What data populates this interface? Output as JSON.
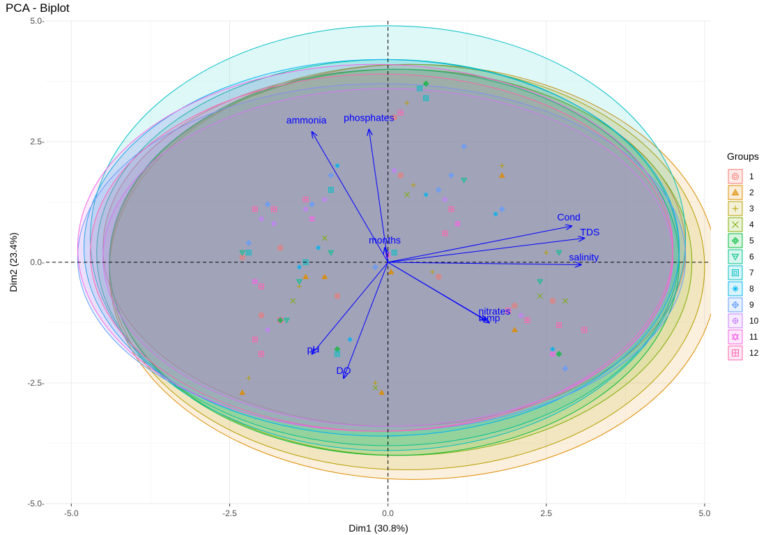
{
  "chart_data": {
    "type": "scatter",
    "title": "PCA - Biplot",
    "xlabel": "Dim1 (30.8%)",
    "ylabel": "Dim2 (23.4%)",
    "xlim": [
      -5.4,
      5.1
    ],
    "ylim": [
      -5.0,
      5.0
    ],
    "x_ticks": [
      -5.0,
      -2.5,
      0.0,
      2.5,
      5.0
    ],
    "x_tick_labels": [
      "-5.0",
      "-2.5",
      "0.0",
      "2.5",
      "5.0"
    ],
    "y_ticks": [
      -5.0,
      -2.5,
      0.0,
      2.5,
      5.0
    ],
    "y_tick_labels": [
      "-5.0-",
      "-2.5-",
      "0.0-",
      "2.5-",
      "5.0-"
    ],
    "grid": true,
    "reference_lines": {
      "x": 0,
      "y": 0,
      "style": "dashed"
    },
    "legend": {
      "title": "Groups",
      "placement": "right",
      "items": [
        {
          "label": "1",
          "color": "#F8766D"
        },
        {
          "label": "2",
          "color": "#DE8C00"
        },
        {
          "label": "3",
          "color": "#B79F00"
        },
        {
          "label": "4",
          "color": "#7CAE00"
        },
        {
          "label": "5",
          "color": "#00BA38"
        },
        {
          "label": "6",
          "color": "#00C08B"
        },
        {
          "label": "7",
          "color": "#00BFC4"
        },
        {
          "label": "8",
          "color": "#00B4F0"
        },
        {
          "label": "9",
          "color": "#619CFF"
        },
        {
          "label": "10",
          "color": "#C77CFF"
        },
        {
          "label": "11",
          "color": "#F564E3"
        },
        {
          "label": "12",
          "color": "#FF64B0"
        }
      ]
    },
    "ellipses": [
      {
        "group": "1",
        "cx": 0.1,
        "cy": 0.3,
        "rx": 4.6,
        "ry": 3.7,
        "color": "#F8766D"
      },
      {
        "group": "2",
        "cx": 0.4,
        "cy": -0.2,
        "rx": 4.8,
        "ry": 4.3,
        "color": "#DE8C00"
      },
      {
        "group": "3",
        "cx": 0.3,
        "cy": -0.1,
        "rx": 4.7,
        "ry": 4.2,
        "color": "#B79F00"
      },
      {
        "group": "4",
        "cx": 0.2,
        "cy": 0.0,
        "rx": 4.6,
        "ry": 4.0,
        "color": "#7CAE00"
      },
      {
        "group": "5",
        "cx": 0.1,
        "cy": 0.0,
        "rx": 4.5,
        "ry": 4.0,
        "color": "#00BA38"
      },
      {
        "group": "6",
        "cx": 0.0,
        "cy": 0.2,
        "rx": 4.6,
        "ry": 4.0,
        "color": "#00C08B"
      },
      {
        "group": "7",
        "cx": 0.0,
        "cy": 0.5,
        "rx": 4.7,
        "ry": 4.4,
        "color": "#00BFC4"
      },
      {
        "group": "8",
        "cx": -0.1,
        "cy": 0.3,
        "rx": 4.7,
        "ry": 3.9,
        "color": "#00B4F0"
      },
      {
        "group": "9",
        "cx": -0.1,
        "cy": 0.1,
        "rx": 4.8,
        "ry": 3.6,
        "color": "#619CFF"
      },
      {
        "group": "10",
        "cx": 0.0,
        "cy": 0.1,
        "rx": 4.5,
        "ry": 3.5,
        "color": "#C77CFF"
      },
      {
        "group": "11",
        "cx": -0.2,
        "cy": 0.3,
        "rx": 4.7,
        "ry": 3.8,
        "color": "#F564E3"
      },
      {
        "group": "12",
        "cx": -0.1,
        "cy": 0.2,
        "rx": 4.6,
        "ry": 3.7,
        "color": "#FF64B0"
      }
    ],
    "loadings": [
      {
        "label": "ammonia",
        "x": -1.2,
        "y": 2.7
      },
      {
        "label": "phosphates",
        "x": -0.3,
        "y": 2.75
      },
      {
        "label": "months",
        "x": -0.05,
        "y": 0.3
      },
      {
        "label": "Cond",
        "x": 2.9,
        "y": 0.75
      },
      {
        "label": "TDS",
        "x": 3.1,
        "y": 0.5
      },
      {
        "label": "salinity",
        "x": 3.05,
        "y": -0.05
      },
      {
        "label": "nitrates",
        "x": 1.55,
        "y": -1.2
      },
      {
        "label": "temp",
        "x": 1.6,
        "y": -1.25
      },
      {
        "label": "pH",
        "x": -1.2,
        "y": -1.9
      },
      {
        "label": "DO",
        "x": -0.7,
        "y": -2.4
      }
    ],
    "points": [
      {
        "g": 1,
        "x": -2.3,
        "y": 0.1
      },
      {
        "g": 3,
        "x": -2.2,
        "y": -2.4
      },
      {
        "g": 2,
        "x": -2.3,
        "y": -2.7
      },
      {
        "g": 12,
        "x": -2.1,
        "y": 1.1
      },
      {
        "g": 10,
        "x": -2.0,
        "y": 0.9
      },
      {
        "g": 9,
        "x": -1.9,
        "y": 1.2
      },
      {
        "g": 11,
        "x": -2.1,
        "y": -0.4
      },
      {
        "g": 12,
        "x": -2.0,
        "y": -0.5
      },
      {
        "g": 1,
        "x": -2.0,
        "y": -1.1
      },
      {
        "g": 12,
        "x": -2.1,
        "y": -1.6
      },
      {
        "g": 10,
        "x": -1.9,
        "y": -1.4
      },
      {
        "g": 12,
        "x": -2.0,
        "y": -1.9
      },
      {
        "g": 7,
        "x": -2.2,
        "y": 0.2
      },
      {
        "g": 6,
        "x": -2.3,
        "y": 0.2
      },
      {
        "g": 9,
        "x": -2.2,
        "y": 0.4
      },
      {
        "g": 12,
        "x": -1.8,
        "y": 1.1
      },
      {
        "g": 10,
        "x": -1.8,
        "y": 0.8
      },
      {
        "g": 1,
        "x": -1.7,
        "y": 0.3
      },
      {
        "g": 12,
        "x": -1.7,
        "y": -1.2
      },
      {
        "g": 5,
        "x": -1.7,
        "y": -1.2
      },
      {
        "g": 6,
        "x": -1.6,
        "y": -1.2
      },
      {
        "g": 4,
        "x": -1.5,
        "y": -0.8
      },
      {
        "g": 3,
        "x": -1.4,
        "y": -0.5
      },
      {
        "g": 2,
        "x": -1.3,
        "y": -0.3
      },
      {
        "g": 7,
        "x": -1.3,
        "y": 0.0
      },
      {
        "g": 8,
        "x": -1.4,
        "y": -0.1
      },
      {
        "g": 6,
        "x": -1.4,
        "y": -0.4
      },
      {
        "g": 12,
        "x": -1.3,
        "y": 1.3
      },
      {
        "g": 10,
        "x": -1.3,
        "y": 1.1
      },
      {
        "g": 9,
        "x": -1.2,
        "y": 1.2
      },
      {
        "g": 11,
        "x": -1.2,
        "y": 0.9
      },
      {
        "g": 10,
        "x": -1.0,
        "y": 1.3
      },
      {
        "g": 7,
        "x": -0.9,
        "y": 1.5
      },
      {
        "g": 8,
        "x": -0.8,
        "y": 2.0
      },
      {
        "g": 9,
        "x": -0.9,
        "y": 1.8
      },
      {
        "g": 4,
        "x": -1.0,
        "y": 0.5
      },
      {
        "g": 2,
        "x": -1.0,
        "y": -0.3
      },
      {
        "g": 6,
        "x": -0.9,
        "y": 0.2
      },
      {
        "g": 8,
        "x": -1.1,
        "y": 0.3
      },
      {
        "g": 1,
        "x": -0.8,
        "y": -0.7
      },
      {
        "g": 5,
        "x": -0.8,
        "y": -1.8
      },
      {
        "g": 7,
        "x": -0.8,
        "y": -1.9
      },
      {
        "g": 8,
        "x": -0.6,
        "y": -1.6
      },
      {
        "g": 4,
        "x": -0.2,
        "y": -2.6
      },
      {
        "g": 2,
        "x": -0.1,
        "y": -2.7
      },
      {
        "g": 3,
        "x": -0.2,
        "y": -2.5
      },
      {
        "g": 1,
        "x": 0.1,
        "y": 3.0
      },
      {
        "g": 12,
        "x": 0.2,
        "y": 3.1
      },
      {
        "g": 3,
        "x": 0.3,
        "y": 3.3
      },
      {
        "g": 7,
        "x": 0.5,
        "y": 3.6
      },
      {
        "g": 5,
        "x": 0.6,
        "y": 3.7
      },
      {
        "g": 7,
        "x": 0.6,
        "y": 3.4
      },
      {
        "g": 10,
        "x": 0.1,
        "y": 1.9
      },
      {
        "g": 1,
        "x": 0.2,
        "y": 1.8
      },
      {
        "g": 3,
        "x": 0.4,
        "y": 1.6
      },
      {
        "g": 4,
        "x": 0.3,
        "y": 1.4
      },
      {
        "g": 8,
        "x": 0.6,
        "y": 1.4
      },
      {
        "g": 9,
        "x": 0.8,
        "y": 1.5
      },
      {
        "g": 10,
        "x": 0.9,
        "y": 1.3
      },
      {
        "g": 12,
        "x": 1.0,
        "y": 1.1
      },
      {
        "g": 9,
        "x": 1.2,
        "y": 2.4
      },
      {
        "g": 9,
        "x": 1.0,
        "y": 1.8
      },
      {
        "g": 6,
        "x": 1.2,
        "y": 1.7
      },
      {
        "g": 11,
        "x": 1.1,
        "y": 0.8
      },
      {
        "g": 12,
        "x": 0.9,
        "y": 0.6
      },
      {
        "g": 3,
        "x": 1.8,
        "y": 2.0
      },
      {
        "g": 2,
        "x": 1.8,
        "y": 1.8
      },
      {
        "g": 8,
        "x": 1.7,
        "y": 1.0
      },
      {
        "g": 9,
        "x": 1.8,
        "y": 1.1
      },
      {
        "g": 12,
        "x": 1.9,
        "y": -1.0
      },
      {
        "g": 1,
        "x": 2.0,
        "y": -0.9
      },
      {
        "g": 10,
        "x": 2.1,
        "y": -1.1
      },
      {
        "g": 2,
        "x": 2.0,
        "y": -1.4
      },
      {
        "g": 12,
        "x": 2.2,
        "y": -1.2
      },
      {
        "g": 4,
        "x": 2.4,
        "y": -0.7
      },
      {
        "g": 6,
        "x": 2.4,
        "y": -0.4
      },
      {
        "g": 3,
        "x": 2.5,
        "y": 0.2
      },
      {
        "g": 1,
        "x": 2.6,
        "y": -0.8
      },
      {
        "g": 12,
        "x": 2.7,
        "y": -1.3
      },
      {
        "g": 11,
        "x": 2.6,
        "y": -1.9
      },
      {
        "g": 8,
        "x": 2.6,
        "y": -1.8
      },
      {
        "g": 9,
        "x": 2.8,
        "y": -2.2
      },
      {
        "g": 12,
        "x": 3.1,
        "y": -1.4
      },
      {
        "g": 5,
        "x": 2.7,
        "y": -1.9
      },
      {
        "g": 6,
        "x": 2.7,
        "y": 0.2
      },
      {
        "g": 4,
        "x": 2.8,
        "y": -0.8
      },
      {
        "g": 7,
        "x": 0.1,
        "y": 0.2
      },
      {
        "g": 11,
        "x": 0.0,
        "y": 0.15
      },
      {
        "g": 2,
        "x": 0.05,
        "y": -0.2
      },
      {
        "g": 9,
        "x": -0.2,
        "y": -0.1
      },
      {
        "g": 3,
        "x": 0.7,
        "y": -0.2
      },
      {
        "g": 1,
        "x": 0.8,
        "y": -0.3
      }
    ]
  }
}
